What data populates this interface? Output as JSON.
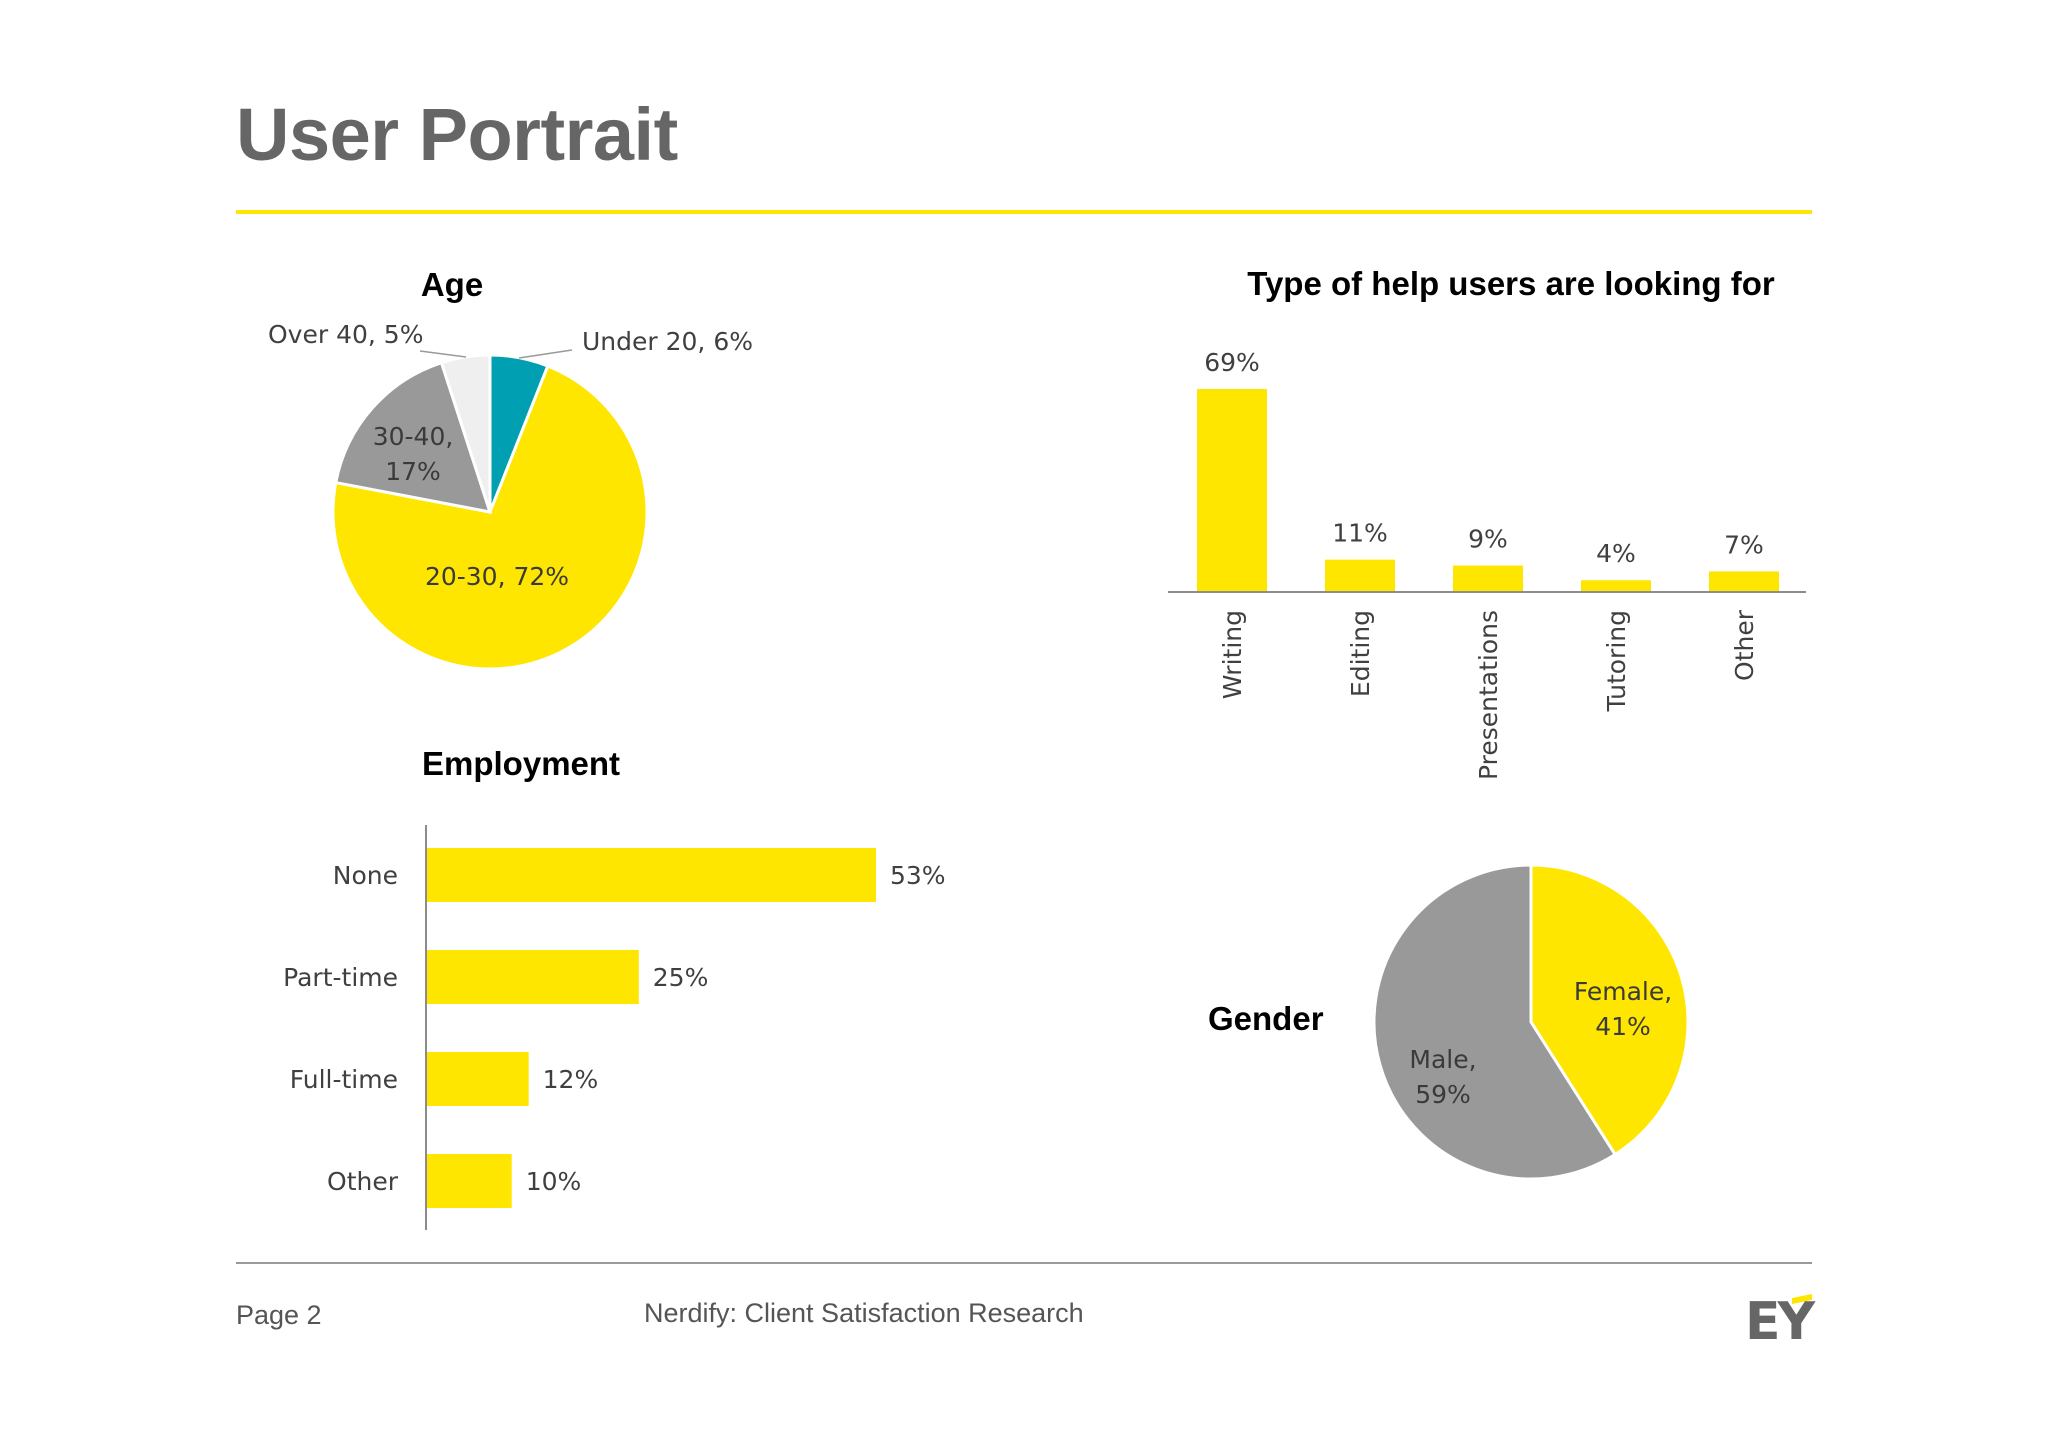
{
  "page": {
    "title": "User Portrait",
    "footer": {
      "page_label": "Page 2",
      "center_text": "Nerdify:  Client Satisfaction Research",
      "logo_text": "EY"
    },
    "colors": {
      "accent": "#FFE600",
      "gray": "#999999",
      "teal": "#009FB1",
      "light": "#EFEFEF",
      "title": "#666666"
    }
  },
  "chart_data": [
    {
      "id": "age",
      "type": "pie",
      "title": "Age",
      "slices": [
        {
          "label": "Under 20",
          "value": 6,
          "text": "Under 20, 6%",
          "color": "#009FB1"
        },
        {
          "label": "20-30",
          "value": 72,
          "text": "20-30, 72%",
          "color": "#FFE600"
        },
        {
          "label": "30-40",
          "value": 17,
          "text_line1": "30-40,",
          "text_line2": "17%",
          "color": "#999999"
        },
        {
          "label": "Over 40",
          "value": 5,
          "text": "Over 40, 5%",
          "color": "#EFEFEF"
        }
      ]
    },
    {
      "id": "help-type",
      "type": "bar",
      "title": "Type of help users are looking for",
      "categories": [
        "Writing",
        "Editing",
        "Presentations",
        "Tutoring",
        "Other"
      ],
      "values": [
        69,
        11,
        9,
        4,
        7
      ],
      "value_labels": [
        "69%",
        "11%",
        "9%",
        "4%",
        "7%"
      ],
      "ylim": [
        0,
        72
      ]
    },
    {
      "id": "employment",
      "type": "bar",
      "orientation": "horizontal",
      "title": "Employment",
      "categories": [
        "None",
        "Part-time",
        "Full-time",
        "Other"
      ],
      "values": [
        53,
        25,
        12,
        10
      ],
      "value_labels": [
        "53%",
        "25%",
        "12%",
        "10%"
      ],
      "xlim": [
        0,
        60
      ]
    },
    {
      "id": "gender",
      "type": "pie",
      "title": "Gender",
      "slices": [
        {
          "label": "Female",
          "value": 41,
          "text_line1": "Female,",
          "text_line2": "41%",
          "color": "#FFE600"
        },
        {
          "label": "Male",
          "value": 59,
          "text_line1": "Male,",
          "text_line2": "59%",
          "color": "#999999"
        }
      ]
    }
  ]
}
